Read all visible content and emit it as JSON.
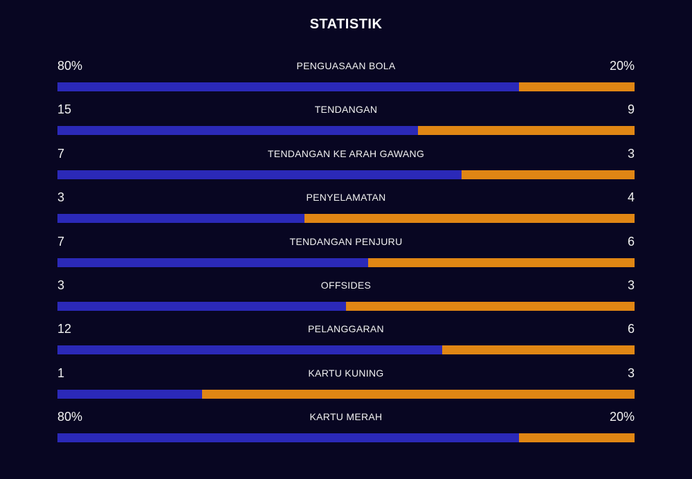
{
  "title": "STATISTIK",
  "colors": {
    "background": "#080622",
    "home": "#2b29b8",
    "away": "#e08614"
  },
  "stats": [
    {
      "label": "PENGUASAAN BOLA",
      "home": "80%",
      "away": "20%",
      "home_share": 0.8
    },
    {
      "label": "TENDANGAN",
      "home": "15",
      "away": "9",
      "home_share": 0.625
    },
    {
      "label": "TENDANGAN KE ARAH GAWANG",
      "home": "7",
      "away": "3",
      "home_share": 0.7
    },
    {
      "label": "PENYELAMATAN",
      "home": "3",
      "away": "4",
      "home_share": 0.4286
    },
    {
      "label": "TENDANGAN PENJURU",
      "home": "7",
      "away": "6",
      "home_share": 0.5385
    },
    {
      "label": "OFFSIDES",
      "home": "3",
      "away": "3",
      "home_share": 0.5
    },
    {
      "label": "PELANGGARAN",
      "home": "12",
      "away": "6",
      "home_share": 0.6667
    },
    {
      "label": "KARTU KUNING",
      "home": "1",
      "away": "3",
      "home_share": 0.25
    },
    {
      "label": "KARTU MERAH",
      "home": "80%",
      "away": "20%",
      "home_share": 0.8
    }
  ]
}
